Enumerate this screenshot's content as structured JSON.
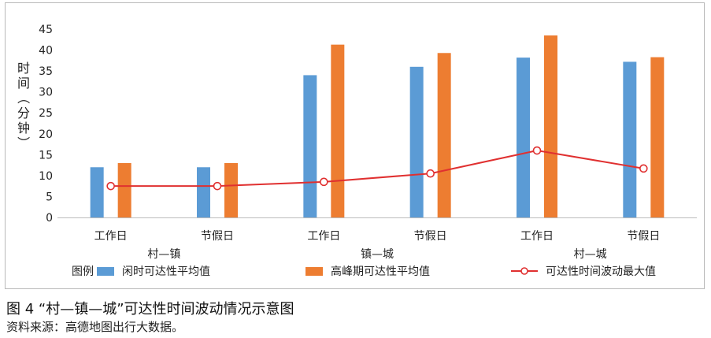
{
  "chart_data": {
    "type": "bar",
    "ylabel": "时间（分钟）",
    "ylim": [
      0,
      45
    ],
    "yticks": [
      0,
      5,
      10,
      15,
      20,
      25,
      30,
      35,
      40,
      45
    ],
    "grid": false,
    "groups": [
      {
        "label": "村—镇",
        "categories": [
          "工作日",
          "节假日"
        ]
      },
      {
        "label": "镇—城",
        "categories": [
          "工作日",
          "节假日"
        ]
      },
      {
        "label": "村—城",
        "categories": [
          "工作日",
          "节假日"
        ]
      }
    ],
    "series": [
      {
        "name": "闲时可达性平均值",
        "kind": "bar",
        "color": "#5b9bd5",
        "values": [
          12,
          12,
          34,
          36,
          38.2,
          37.2
        ]
      },
      {
        "name": "高峰期可达性平均值",
        "kind": "bar",
        "color": "#ed7d31",
        "values": [
          13,
          13,
          41.3,
          39.3,
          43.5,
          38.3
        ]
      },
      {
        "name": "可达性时间波动最大值",
        "kind": "line",
        "color": "#e03030",
        "values": [
          7.5,
          7.5,
          8.5,
          10.5,
          16,
          11.7
        ]
      }
    ],
    "legend_position": "bottom"
  },
  "legend": {
    "title": "图例"
  },
  "caption": {
    "figure": "图 4 “村—镇—城”可达性时间波动情况示意图",
    "source": "资料来源：高德地图出行大数据。"
  }
}
